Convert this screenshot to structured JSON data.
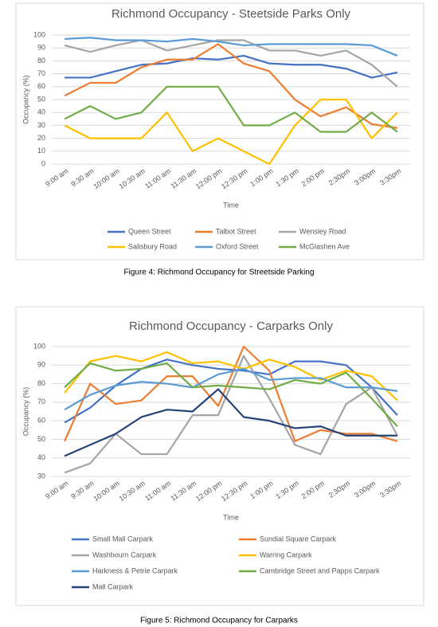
{
  "chart_data": [
    {
      "type": "line",
      "title": "Richmond Occupancy - Steetside Parks Only",
      "caption": "Figure 4: Richmond Occupancy for Streetside Parking",
      "x_label": "Time",
      "y_label": "Occupancy (%)",
      "categories": [
        "9:00 am",
        "9:30 am",
        "10:00 am",
        "10:30 am",
        "11:00 am",
        "11:30 am",
        "12:00 pm",
        "12:30 pm",
        "1:00 pm",
        "1:30 pm",
        "2:00 pm",
        "2:30pm",
        "3:00pm",
        "3:30pm"
      ],
      "ylim": [
        0,
        100
      ],
      "yticks": [
        0,
        10,
        20,
        30,
        40,
        50,
        60,
        70,
        80,
        90,
        100
      ],
      "grid": true,
      "series": [
        {
          "name": "Queen Street",
          "color": "#4472c4",
          "values": [
            67,
            67,
            72,
            77,
            78,
            82,
            81,
            84,
            78,
            77,
            77,
            74,
            67,
            71
          ]
        },
        {
          "name": "Talbot Street",
          "color": "#ed7d31",
          "values": [
            53,
            63,
            63,
            75,
            81,
            81,
            93,
            78,
            72,
            50,
            37,
            44,
            31,
            28
          ]
        },
        {
          "name": "Wensley Road",
          "color": "#a5a5a5",
          "values": [
            92,
            87,
            92,
            96,
            88,
            92,
            96,
            96,
            88,
            88,
            84,
            88,
            77,
            60
          ]
        },
        {
          "name": "Salisbury Road",
          "color": "#ffc000",
          "values": [
            30,
            20,
            20,
            20,
            40,
            10,
            20,
            10,
            0,
            30,
            50,
            50,
            20,
            40
          ]
        },
        {
          "name": "Oxford Street",
          "color": "#5b9bd5",
          "values": [
            97,
            98,
            96,
            96,
            95,
            97,
            95,
            92,
            93,
            93,
            93,
            93,
            92,
            84
          ]
        },
        {
          "name": "McGlashen Ave",
          "color": "#70ad47",
          "values": [
            35,
            45,
            35,
            40,
            60,
            60,
            60,
            30,
            30,
            40,
            25,
            25,
            40,
            25
          ]
        }
      ]
    },
    {
      "type": "line",
      "title": "Richmond Occupancy - Carparks Only",
      "caption": "Figure 5: Richmond Occupancy for Carparks",
      "x_label": "Time",
      "y_label": "Occupancy (%)",
      "categories": [
        "9:00 am",
        "9:30 am",
        "10:00 am",
        "10:30 am",
        "11:00 am",
        "11:30 am",
        "12:00 pm",
        "12:30 pm",
        "1:00 pm",
        "1:30 pm",
        "2:00 pm",
        "2:30pm",
        "3:00pm",
        "3:30pm"
      ],
      "ylim": [
        30,
        100
      ],
      "yticks": [
        30,
        40,
        50,
        60,
        70,
        80,
        90,
        100
      ],
      "grid": true,
      "series": [
        {
          "name": "Small Mall Carpark",
          "color": "#4472c4",
          "values": [
            59,
            67,
            79,
            88,
            93,
            90,
            88,
            87,
            85,
            92,
            92,
            90,
            78,
            63
          ]
        },
        {
          "name": "Sundial Square Carpark",
          "color": "#ed7d31",
          "values": [
            49,
            80,
            69,
            71,
            84,
            84,
            68,
            100,
            87,
            49,
            55,
            53,
            53,
            49
          ]
        },
        {
          "name": "Washbourn Carpark",
          "color": "#a5a5a5",
          "values": [
            32,
            37,
            53,
            42,
            42,
            63,
            63,
            95,
            72,
            47,
            42,
            69,
            78,
            52
          ]
        },
        {
          "name": "Warring Carpark",
          "color": "#ffc000",
          "values": [
            75,
            92,
            95,
            92,
            97,
            91,
            92,
            88,
            93,
            89,
            82,
            87,
            84,
            71
          ]
        },
        {
          "name": "Harkness & Petrie Carpark",
          "color": "#5b9bd5",
          "values": [
            66,
            74,
            79,
            81,
            80,
            78,
            85,
            88,
            82,
            83,
            83,
            78,
            78,
            76
          ]
        },
        {
          "name": "Cambridge Street and Papps Carpark",
          "color": "#70ad47",
          "values": [
            78,
            91,
            87,
            88,
            91,
            78,
            79,
            78,
            77,
            82,
            80,
            86,
            72,
            57
          ]
        },
        {
          "name": "Mall Carpark",
          "color": "#264478",
          "values": [
            41,
            47,
            53,
            62,
            66,
            65,
            77,
            62,
            60,
            56,
            57,
            52,
            52,
            52
          ]
        }
      ]
    }
  ]
}
